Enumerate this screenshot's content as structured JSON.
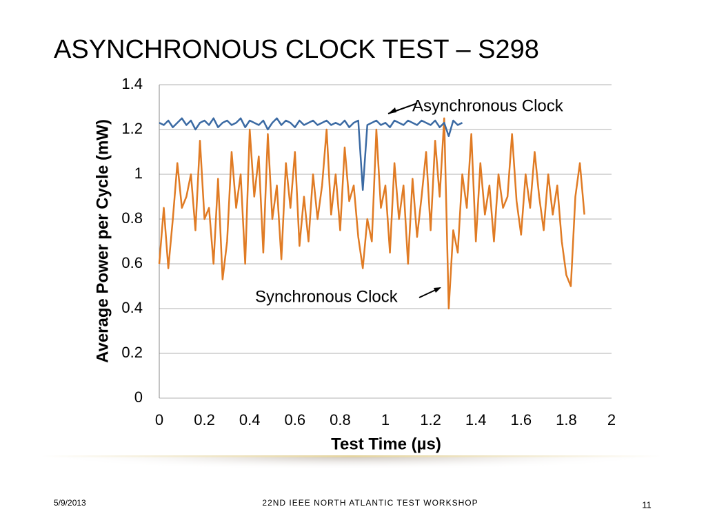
{
  "slide": {
    "title": "ASYNCHRONOUS CLOCK TEST – S298",
    "date": "5/9/2013",
    "footer": "22ND IEEE NORTH ATLANTIC TEST WORKSHOP",
    "page": "11"
  },
  "chart_data": {
    "type": "line",
    "x_label": "Test Time (µs)",
    "y_label": "Average Power per Cycle (mW)",
    "annotations": [
      "Asynchronous Clock",
      "Synchronous Clock"
    ],
    "xlim": [
      0,
      2
    ],
    "xticks": [
      0,
      0.2,
      0.4,
      0.6,
      0.8,
      1,
      1.2,
      1.4,
      1.6,
      1.8,
      2
    ],
    "ylim": [
      0,
      1.4
    ],
    "yticks": [
      0,
      0.2,
      0.4,
      0.6,
      0.8,
      1,
      1.2,
      1.4
    ],
    "grid": true,
    "series": [
      {
        "name": "Asynchronous Clock",
        "color": "#3b6aa3",
        "x": [
          0,
          0.02,
          0.04,
          0.06,
          0.08,
          0.1,
          0.12,
          0.14,
          0.16,
          0.18,
          0.2,
          0.22,
          0.24,
          0.26,
          0.28,
          0.3,
          0.32,
          0.34,
          0.36,
          0.38,
          0.4,
          0.42,
          0.44,
          0.46,
          0.48,
          0.5,
          0.52,
          0.54,
          0.56,
          0.58,
          0.6,
          0.62,
          0.64,
          0.66,
          0.68,
          0.7,
          0.72,
          0.74,
          0.76,
          0.78,
          0.8,
          0.82,
          0.84,
          0.86,
          0.88,
          0.9,
          0.92,
          0.94,
          0.96,
          0.98,
          1,
          1.02,
          1.04,
          1.06,
          1.08,
          1.1,
          1.12,
          1.14,
          1.16,
          1.18,
          1.2,
          1.22,
          1.24,
          1.26,
          1.28,
          1.3,
          1.32,
          1.34
        ],
        "values": [
          1.23,
          1.22,
          1.24,
          1.21,
          1.23,
          1.25,
          1.22,
          1.24,
          1.2,
          1.23,
          1.24,
          1.22,
          1.25,
          1.21,
          1.23,
          1.24,
          1.22,
          1.23,
          1.25,
          1.21,
          1.24,
          1.23,
          1.22,
          1.24,
          1.2,
          1.23,
          1.25,
          1.22,
          1.24,
          1.23,
          1.21,
          1.24,
          1.22,
          1.23,
          1.24,
          1.22,
          1.23,
          1.24,
          1.22,
          1.23,
          1.22,
          1.24,
          1.21,
          1.23,
          1.24,
          0.93,
          1.22,
          1.23,
          1.24,
          1.22,
          1.23,
          1.21,
          1.24,
          1.23,
          1.22,
          1.24,
          1.23,
          1.22,
          1.24,
          1.23,
          1.22,
          1.24,
          1.21,
          1.23,
          1.17,
          1.24,
          1.22,
          1.23
        ]
      },
      {
        "name": "Synchronous Clock",
        "color": "#e07b24",
        "x": [
          0,
          0.02,
          0.04,
          0.06,
          0.08,
          0.1,
          0.12,
          0.14,
          0.16,
          0.18,
          0.2,
          0.22,
          0.24,
          0.26,
          0.28,
          0.3,
          0.32,
          0.34,
          0.36,
          0.38,
          0.4,
          0.42,
          0.44,
          0.46,
          0.48,
          0.5,
          0.52,
          0.54,
          0.56,
          0.58,
          0.6,
          0.62,
          0.64,
          0.66,
          0.68,
          0.7,
          0.72,
          0.74,
          0.76,
          0.78,
          0.8,
          0.82,
          0.84,
          0.86,
          0.88,
          0.9,
          0.92,
          0.94,
          0.96,
          0.98,
          1,
          1.02,
          1.04,
          1.06,
          1.08,
          1.1,
          1.12,
          1.14,
          1.16,
          1.18,
          1.2,
          1.22,
          1.24,
          1.26,
          1.28,
          1.3,
          1.32,
          1.34,
          1.36,
          1.38,
          1.4,
          1.42,
          1.44,
          1.46,
          1.48,
          1.5,
          1.52,
          1.54,
          1.56,
          1.58,
          1.6,
          1.62,
          1.64,
          1.66,
          1.68,
          1.7,
          1.72,
          1.74,
          1.76,
          1.78,
          1.8,
          1.82,
          1.84,
          1.86,
          1.88
        ],
        "values": [
          0.6,
          0.85,
          0.58,
          0.8,
          1.05,
          0.85,
          0.9,
          1.0,
          0.75,
          1.15,
          0.8,
          0.85,
          0.6,
          0.98,
          0.53,
          0.7,
          1.1,
          0.85,
          1.0,
          0.6,
          1.2,
          0.9,
          1.08,
          0.65,
          1.18,
          0.8,
          0.95,
          0.62,
          1.05,
          0.85,
          1.1,
          0.68,
          0.9,
          0.7,
          1.0,
          0.8,
          0.95,
          1.2,
          0.82,
          1.0,
          0.75,
          1.12,
          0.88,
          0.95,
          0.72,
          0.58,
          0.8,
          0.7,
          1.2,
          0.85,
          0.95,
          0.65,
          1.05,
          0.8,
          0.95,
          0.6,
          0.98,
          0.72,
          0.9,
          1.1,
          0.75,
          1.15,
          0.9,
          1.25,
          0.4,
          0.75,
          0.65,
          1.0,
          0.85,
          1.18,
          0.7,
          1.05,
          0.82,
          0.95,
          0.7,
          1.0,
          0.85,
          0.9,
          1.18,
          0.88,
          0.73,
          1.0,
          0.85,
          1.1,
          0.9,
          0.75,
          1.0,
          0.82,
          0.95,
          0.7,
          0.55,
          0.5,
          0.9,
          1.05,
          0.82
        ]
      }
    ]
  }
}
